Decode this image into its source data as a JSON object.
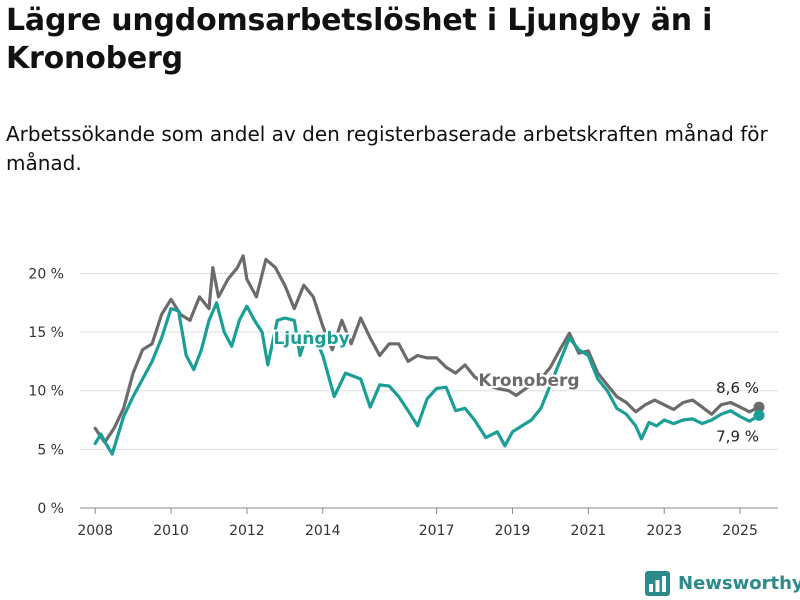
{
  "chart_data": {
    "type": "line",
    "title": "Lägre ungdomsarbetslöshet i Ljungby än i Kronoberg",
    "subtitle": "Arbetssökande som andel av den registerbaserade arbetskraften månad för månad.",
    "xlabel": "",
    "ylabel": "",
    "x_ticks": [
      "2008",
      "2010",
      "2012",
      "2014",
      "2017",
      "2019",
      "2021",
      "2023",
      "2025"
    ],
    "y_ticks": [
      "0 %",
      "5 %",
      "10 %",
      "15 %",
      "20 %"
    ],
    "ylim": [
      0,
      22
    ],
    "grid": "horizontal",
    "legend": "direct labels",
    "series": [
      {
        "name": "Kronoberg",
        "color": "#6b6b6b",
        "end_label": "8,6 %",
        "points": [
          [
            2008.0,
            6.8
          ],
          [
            2008.25,
            5.6
          ],
          [
            2008.5,
            6.8
          ],
          [
            2008.75,
            8.5
          ],
          [
            2009.0,
            11.5
          ],
          [
            2009.25,
            13.5
          ],
          [
            2009.5,
            14.0
          ],
          [
            2009.75,
            16.5
          ],
          [
            2010.0,
            17.8
          ],
          [
            2010.25,
            16.5
          ],
          [
            2010.5,
            16.0
          ],
          [
            2010.75,
            18.0
          ],
          [
            2011.0,
            17.0
          ],
          [
            2011.1,
            20.5
          ],
          [
            2011.25,
            18.0
          ],
          [
            2011.5,
            19.5
          ],
          [
            2011.75,
            20.5
          ],
          [
            2011.9,
            21.5
          ],
          [
            2012.0,
            19.5
          ],
          [
            2012.25,
            18.0
          ],
          [
            2012.5,
            21.2
          ],
          [
            2012.75,
            20.5
          ],
          [
            2013.0,
            19.0
          ],
          [
            2013.25,
            17.0
          ],
          [
            2013.5,
            19.0
          ],
          [
            2013.75,
            18.0
          ],
          [
            2014.0,
            15.5
          ],
          [
            2014.25,
            13.5
          ],
          [
            2014.5,
            16.0
          ],
          [
            2014.75,
            14.0
          ],
          [
            2015.0,
            16.2
          ],
          [
            2015.25,
            14.5
          ],
          [
            2015.5,
            13.0
          ],
          [
            2015.75,
            14.0
          ],
          [
            2016.0,
            14.0
          ],
          [
            2016.25,
            12.5
          ],
          [
            2016.5,
            13.0
          ],
          [
            2016.75,
            12.8
          ],
          [
            2017.0,
            12.8
          ],
          [
            2017.25,
            12.0
          ],
          [
            2017.5,
            11.5
          ],
          [
            2017.75,
            12.2
          ],
          [
            2018.0,
            11.2
          ],
          [
            2018.3,
            10.5
          ],
          [
            2018.6,
            10.2
          ],
          [
            2018.9,
            10.0
          ],
          [
            2019.1,
            9.6
          ],
          [
            2019.4,
            10.3
          ],
          [
            2019.7,
            10.8
          ],
          [
            2020.0,
            12.0
          ],
          [
            2020.25,
            13.5
          ],
          [
            2020.5,
            14.9
          ],
          [
            2020.75,
            13.2
          ],
          [
            2021.0,
            13.4
          ],
          [
            2021.25,
            11.5
          ],
          [
            2021.5,
            10.5
          ],
          [
            2021.75,
            9.5
          ],
          [
            2022.0,
            9.0
          ],
          [
            2022.25,
            8.2
          ],
          [
            2022.5,
            8.8
          ],
          [
            2022.75,
            9.2
          ],
          [
            2023.0,
            8.8
          ],
          [
            2023.25,
            8.4
          ],
          [
            2023.5,
            9.0
          ],
          [
            2023.75,
            9.2
          ],
          [
            2024.0,
            8.6
          ],
          [
            2024.25,
            8.0
          ],
          [
            2024.5,
            8.8
          ],
          [
            2024.75,
            9.0
          ],
          [
            2025.0,
            8.6
          ],
          [
            2025.25,
            8.2
          ],
          [
            2025.5,
            8.6
          ]
        ]
      },
      {
        "name": "Ljungby",
        "color": "#1a9e95",
        "end_label": "7,9 %",
        "points": [
          [
            2008.0,
            5.5
          ],
          [
            2008.15,
            6.3
          ],
          [
            2008.3,
            5.4
          ],
          [
            2008.45,
            4.6
          ],
          [
            2008.75,
            7.8
          ],
          [
            2009.0,
            9.5
          ],
          [
            2009.25,
            11.0
          ],
          [
            2009.5,
            12.5
          ],
          [
            2009.75,
            14.5
          ],
          [
            2010.0,
            17.0
          ],
          [
            2010.2,
            16.8
          ],
          [
            2010.4,
            13.0
          ],
          [
            2010.6,
            11.8
          ],
          [
            2010.8,
            13.5
          ],
          [
            2011.0,
            16.0
          ],
          [
            2011.2,
            17.5
          ],
          [
            2011.4,
            15.0
          ],
          [
            2011.6,
            13.8
          ],
          [
            2011.8,
            16.0
          ],
          [
            2012.0,
            17.2
          ],
          [
            2012.2,
            16.0
          ],
          [
            2012.4,
            15.0
          ],
          [
            2012.55,
            12.2
          ],
          [
            2012.8,
            16.0
          ],
          [
            2013.0,
            16.2
          ],
          [
            2013.25,
            16.0
          ],
          [
            2013.4,
            13.0
          ],
          [
            2013.6,
            15.0
          ],
          [
            2013.8,
            14.5
          ],
          [
            2014.0,
            13.0
          ],
          [
            2014.3,
            9.5
          ],
          [
            2014.6,
            11.5
          ],
          [
            2015.0,
            11.0
          ],
          [
            2015.25,
            8.6
          ],
          [
            2015.5,
            10.5
          ],
          [
            2015.75,
            10.4
          ],
          [
            2016.0,
            9.5
          ],
          [
            2016.25,
            8.3
          ],
          [
            2016.5,
            7.0
          ],
          [
            2016.75,
            9.3
          ],
          [
            2017.0,
            10.2
          ],
          [
            2017.25,
            10.3
          ],
          [
            2017.5,
            8.3
          ],
          [
            2017.75,
            8.5
          ],
          [
            2018.0,
            7.5
          ],
          [
            2018.3,
            6.0
          ],
          [
            2018.6,
            6.5
          ],
          [
            2018.8,
            5.3
          ],
          [
            2019.0,
            6.5
          ],
          [
            2019.25,
            7.0
          ],
          [
            2019.5,
            7.5
          ],
          [
            2019.75,
            8.5
          ],
          [
            2020.0,
            10.5
          ],
          [
            2020.25,
            12.5
          ],
          [
            2020.5,
            14.5
          ],
          [
            2020.75,
            13.5
          ],
          [
            2021.0,
            13.0
          ],
          [
            2021.25,
            11.0
          ],
          [
            2021.5,
            10.0
          ],
          [
            2021.75,
            8.5
          ],
          [
            2022.0,
            8.0
          ],
          [
            2022.25,
            7.0
          ],
          [
            2022.4,
            5.9
          ],
          [
            2022.6,
            7.3
          ],
          [
            2022.8,
            7.0
          ],
          [
            2023.0,
            7.5
          ],
          [
            2023.25,
            7.2
          ],
          [
            2023.5,
            7.5
          ],
          [
            2023.75,
            7.6
          ],
          [
            2024.0,
            7.2
          ],
          [
            2024.25,
            7.5
          ],
          [
            2024.5,
            8.0
          ],
          [
            2024.75,
            8.3
          ],
          [
            2025.0,
            7.8
          ],
          [
            2025.25,
            7.4
          ],
          [
            2025.5,
            7.9
          ]
        ]
      }
    ]
  },
  "brand": {
    "name": "Newsworthy",
    "color": "#2b8a8a"
  }
}
